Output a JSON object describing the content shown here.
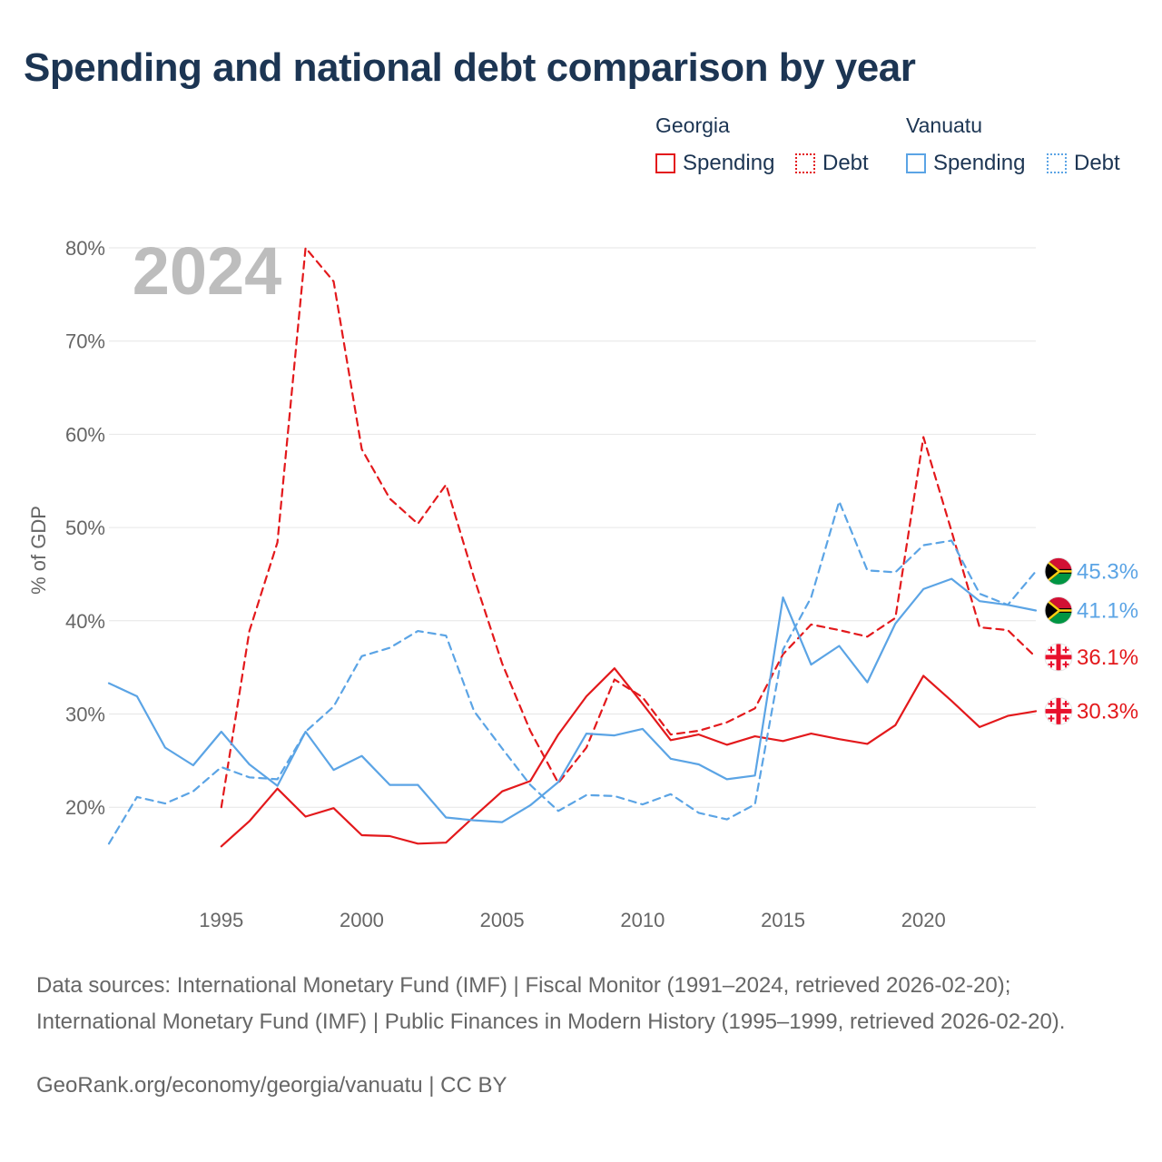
{
  "title": "Spending and national debt comparison by year",
  "legend": {
    "groups": [
      {
        "name": "Georgia",
        "color": "#e3191c",
        "items": [
          {
            "label": "Spending",
            "style": "solid"
          },
          {
            "label": "Debt",
            "style": "dotted"
          }
        ]
      },
      {
        "name": "Vanuatu",
        "color": "#5ba4e5",
        "items": [
          {
            "label": "Spending",
            "style": "solid"
          },
          {
            "label": "Debt",
            "style": "dotted"
          }
        ]
      }
    ]
  },
  "chart_data": {
    "type": "line",
    "year_label": "2024",
    "ylabel": "% of GDP",
    "xlim": [
      1991,
      2024
    ],
    "ylim": [
      13,
      80
    ],
    "y_ticks": [
      20,
      30,
      40,
      50,
      60,
      70,
      80
    ],
    "y_tick_labels": [
      "20%",
      "30%",
      "40%",
      "50%",
      "60%",
      "70%",
      "80%"
    ],
    "x_ticks": [
      1995,
      2000,
      2005,
      2010,
      2015,
      2020
    ],
    "x_tick_labels": [
      "1995",
      "2000",
      "2005",
      "2010",
      "2015",
      "2020"
    ],
    "series": [
      {
        "name": "Georgia Spending",
        "country": "Georgia",
        "flag": "georgia",
        "color": "#e3191c",
        "dash": "solid",
        "end_label": "30.3%",
        "x": [
          1995,
          1996,
          1997,
          1998,
          1999,
          2000,
          2001,
          2002,
          2003,
          2004,
          2005,
          2006,
          2007,
          2008,
          2009,
          2010,
          2011,
          2012,
          2013,
          2014,
          2015,
          2016,
          2017,
          2018,
          2019,
          2020,
          2021,
          2022,
          2023,
          2024
        ],
        "values": [
          15.8,
          18.5,
          22.0,
          19.0,
          19.9,
          17.0,
          16.9,
          16.1,
          16.2,
          19.0,
          21.7,
          22.8,
          27.8,
          31.9,
          34.9,
          31.1,
          27.2,
          27.8,
          26.7,
          27.6,
          27.1,
          27.9,
          27.3,
          26.8,
          28.8,
          34.1,
          31.4,
          28.6,
          29.8,
          30.3
        ]
      },
      {
        "name": "Georgia Debt",
        "country": "Georgia",
        "flag": "georgia",
        "color": "#e3191c",
        "dash": "dashed",
        "end_label": "36.1%",
        "x": [
          1995,
          1996,
          1997,
          1998,
          1999,
          2000,
          2001,
          2002,
          2003,
          2004,
          2005,
          2006,
          2007,
          2008,
          2009,
          2010,
          2011,
          2012,
          2013,
          2014,
          2015,
          2016,
          2017,
          2018,
          2019,
          2020,
          2021,
          2022,
          2023,
          2024
        ],
        "values": [
          20.0,
          38.9,
          48.4,
          80.0,
          76.4,
          58.4,
          53.1,
          50.4,
          54.6,
          44.6,
          35.4,
          28.2,
          22.6,
          26.4,
          33.7,
          31.8,
          27.8,
          28.2,
          29.1,
          30.6,
          36.4,
          39.6,
          39.0,
          38.3,
          40.3,
          59.7,
          49.6,
          39.3,
          39.0,
          36.1
        ]
      },
      {
        "name": "Vanuatu Spending",
        "country": "Vanuatu",
        "flag": "vanuatu",
        "color": "#5ba4e5",
        "dash": "solid",
        "end_label": "41.1%",
        "x": [
          1991,
          1992,
          1993,
          1994,
          1995,
          1996,
          1997,
          1998,
          1999,
          2000,
          2001,
          2002,
          2003,
          2004,
          2005,
          2006,
          2007,
          2008,
          2009,
          2010,
          2011,
          2012,
          2013,
          2014,
          2015,
          2016,
          2017,
          2018,
          2019,
          2020,
          2021,
          2022,
          2023,
          2024
        ],
        "values": [
          33.3,
          31.9,
          26.4,
          24.5,
          28.1,
          24.6,
          22.3,
          28.1,
          24.0,
          25.5,
          22.4,
          22.4,
          18.9,
          18.6,
          18.4,
          20.2,
          22.7,
          27.9,
          27.7,
          28.4,
          25.2,
          24.6,
          23.0,
          23.4,
          42.5,
          35.3,
          37.3,
          33.4,
          39.7,
          43.4,
          44.5,
          42.1,
          41.7,
          41.1
        ]
      },
      {
        "name": "Vanuatu Debt",
        "country": "Vanuatu",
        "flag": "vanuatu",
        "color": "#5ba4e5",
        "dash": "dashed",
        "end_label": "45.3%",
        "x": [
          1991,
          1992,
          1993,
          1994,
          1995,
          1996,
          1997,
          1998,
          1999,
          2000,
          2001,
          2002,
          2003,
          2004,
          2005,
          2006,
          2007,
          2008,
          2009,
          2010,
          2011,
          2012,
          2013,
          2014,
          2015,
          2016,
          2017,
          2018,
          2019,
          2020,
          2021,
          2022,
          2023,
          2024
        ],
        "values": [
          16.1,
          21.1,
          20.4,
          21.7,
          24.3,
          23.2,
          23.0,
          28.1,
          30.8,
          36.2,
          37.1,
          38.9,
          38.4,
          30.3,
          26.3,
          22.4,
          19.6,
          21.3,
          21.2,
          20.3,
          21.4,
          19.4,
          18.7,
          20.3,
          36.9,
          42.5,
          52.8,
          45.4,
          45.2,
          48.1,
          48.6,
          42.9,
          41.7,
          45.3
        ]
      }
    ]
  },
  "footer": {
    "sources": "Data sources: International Monetary Fund (IMF) | Fiscal Monitor (1991–2024, retrieved 2026-02-20); International Monetary Fund (IMF) | Public Finances in Modern History (1995–1999, retrieved 2026-02-20).",
    "credit": "GeoRank.org/economy/georgia/vanuatu | CC BY"
  }
}
